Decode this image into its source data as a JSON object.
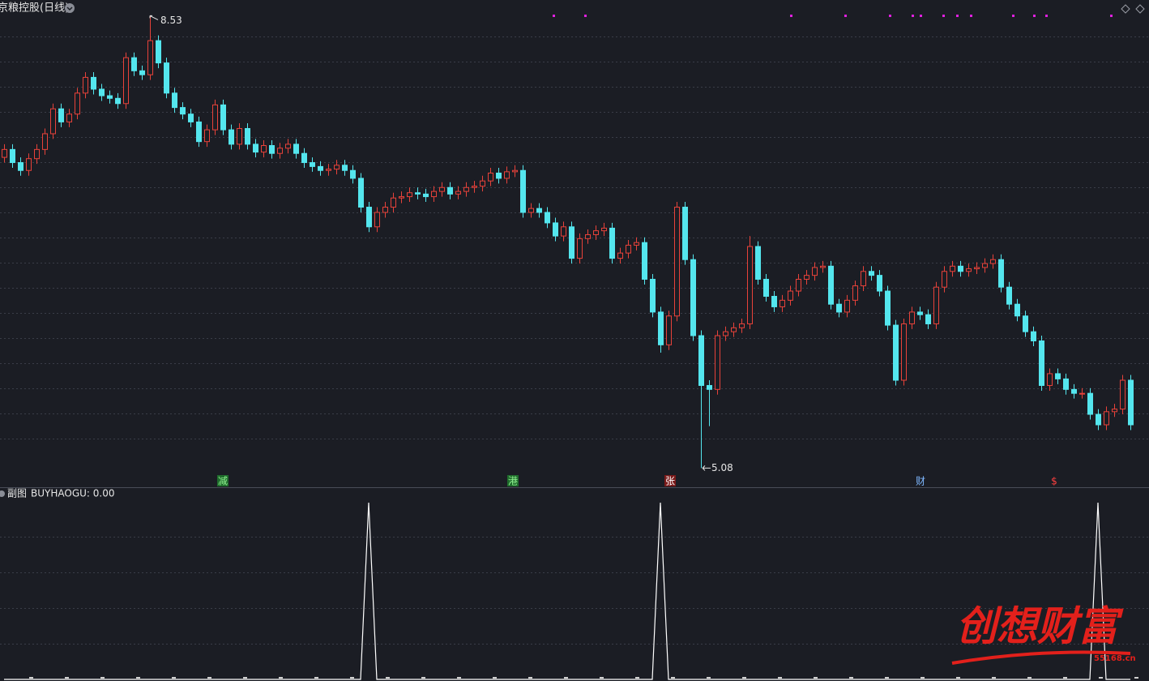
{
  "chart_data": [
    {
      "type": "candlestick",
      "title": "京粮控股(日线)",
      "up_color": "#e8423a",
      "down_color": "#54e6ee",
      "ylim": [
        4.94,
        8.65
      ],
      "open": [
        7.45,
        7.51,
        7.41,
        7.35,
        7.44,
        7.51,
        7.63,
        7.82,
        7.72,
        7.78,
        7.94,
        8.06,
        7.97,
        7.92,
        7.9,
        7.86,
        8.21,
        8.11,
        8.08,
        8.34,
        8.17,
        7.94,
        7.83,
        7.78,
        7.72,
        7.57,
        7.66,
        7.85,
        7.66,
        7.55,
        7.67,
        7.55,
        7.49,
        7.54,
        7.48,
        7.52,
        7.55,
        7.48,
        7.41,
        7.38,
        7.35,
        7.36,
        7.39,
        7.35,
        7.29,
        7.07,
        6.92,
        7.03,
        7.07,
        7.14,
        7.15,
        7.18,
        7.17,
        7.15,
        7.19,
        7.22,
        7.17,
        7.19,
        7.22,
        7.23,
        7.27,
        7.33,
        7.29,
        7.34,
        7.35,
        7.03,
        7.06,
        7.03,
        6.95,
        6.85,
        6.92,
        6.68,
        6.83,
        6.86,
        6.89,
        6.91,
        6.68,
        6.72,
        6.78,
        6.8,
        6.52,
        6.27,
        6.02,
        6.24,
        7.07,
        6.67,
        6.09,
        5.71,
        5.68,
        6.09,
        6.12,
        6.15,
        6.18,
        6.77,
        6.52,
        6.39,
        6.31,
        6.36,
        6.43,
        6.52,
        6.55,
        6.61,
        6.62,
        6.33,
        6.27,
        6.36,
        6.47,
        6.58,
        6.55,
        6.43,
        6.17,
        5.75,
        6.18,
        6.27,
        6.25,
        6.18,
        6.46,
        6.58,
        6.62,
        6.58,
        6.6,
        6.61,
        6.64,
        6.67,
        6.46,
        6.33,
        6.24,
        6.12,
        6.05,
        5.71,
        5.8,
        5.76,
        5.68,
        5.65,
        5.65,
        5.49,
        5.41,
        5.51,
        5.53,
        5.75
      ],
      "high": [
        7.55,
        7.55,
        7.45,
        7.48,
        7.55,
        7.67,
        7.86,
        7.86,
        7.82,
        7.98,
        8.1,
        8.1,
        8.01,
        7.96,
        7.94,
        8.25,
        8.25,
        8.15,
        8.53,
        8.38,
        8.21,
        7.98,
        7.87,
        7.82,
        7.76,
        7.7,
        7.89,
        7.89,
        7.7,
        7.71,
        7.71,
        7.59,
        7.58,
        7.58,
        7.56,
        7.59,
        7.59,
        7.52,
        7.45,
        7.42,
        7.4,
        7.43,
        7.43,
        7.39,
        7.33,
        7.11,
        7.07,
        7.11,
        7.18,
        7.19,
        7.22,
        7.22,
        7.21,
        7.23,
        7.26,
        7.26,
        7.23,
        7.26,
        7.27,
        7.31,
        7.37,
        7.37,
        7.38,
        7.39,
        7.39,
        7.1,
        7.1,
        7.07,
        6.99,
        6.96,
        6.96,
        6.87,
        6.9,
        6.93,
        6.95,
        6.95,
        6.76,
        6.82,
        6.84,
        6.84,
        6.56,
        6.31,
        6.28,
        7.11,
        7.11,
        6.71,
        6.13,
        5.75,
        6.13,
        6.16,
        6.19,
        6.22,
        6.85,
        6.81,
        6.56,
        6.43,
        6.4,
        6.47,
        6.56,
        6.59,
        6.65,
        6.66,
        6.66,
        6.37,
        6.4,
        6.51,
        6.62,
        6.62,
        6.59,
        6.47,
        6.21,
        6.22,
        6.31,
        6.31,
        6.29,
        6.5,
        6.62,
        6.66,
        6.66,
        6.64,
        6.65,
        6.68,
        6.71,
        6.71,
        6.5,
        6.37,
        6.28,
        6.16,
        6.09,
        5.84,
        5.84,
        5.8,
        5.72,
        5.69,
        5.69,
        5.53,
        5.55,
        5.57,
        5.79,
        5.79
      ],
      "low": [
        7.41,
        7.37,
        7.31,
        7.31,
        7.4,
        7.47,
        7.59,
        7.68,
        7.68,
        7.74,
        7.9,
        7.93,
        7.88,
        7.86,
        7.82,
        7.82,
        8.07,
        8.04,
        8.04,
        8.13,
        7.9,
        7.79,
        7.74,
        7.68,
        7.53,
        7.53,
        7.62,
        7.62,
        7.51,
        7.51,
        7.51,
        7.45,
        7.45,
        7.44,
        7.44,
        7.48,
        7.44,
        7.37,
        7.34,
        7.31,
        7.31,
        7.32,
        7.31,
        7.25,
        7.03,
        6.88,
        6.88,
        6.99,
        7.03,
        7.1,
        7.11,
        7.13,
        7.11,
        7.11,
        7.15,
        7.13,
        7.13,
        7.15,
        7.18,
        7.19,
        7.23,
        7.25,
        7.25,
        7.3,
        6.99,
        6.99,
        6.99,
        6.91,
        6.81,
        6.81,
        6.64,
        6.64,
        6.79,
        6.82,
        6.85,
        6.64,
        6.64,
        6.68,
        6.74,
        6.48,
        6.23,
        5.96,
        5.98,
        6.2,
        6.63,
        6.05,
        5.08,
        5.4,
        5.64,
        6.05,
        6.08,
        6.11,
        6.14,
        6.48,
        6.35,
        6.27,
        6.27,
        6.32,
        6.39,
        6.48,
        6.51,
        6.57,
        6.29,
        6.23,
        6.23,
        6.32,
        6.43,
        6.51,
        6.39,
        6.13,
        5.71,
        5.71,
        6.14,
        6.21,
        6.14,
        6.14,
        6.42,
        6.54,
        6.54,
        6.54,
        6.56,
        6.57,
        6.6,
        6.42,
        6.29,
        6.2,
        6.08,
        6.01,
        5.67,
        5.67,
        5.72,
        5.64,
        5.61,
        5.61,
        5.45,
        5.37,
        5.37,
        5.47,
        5.49,
        5.37
      ],
      "close": [
        7.51,
        7.41,
        7.35,
        7.44,
        7.51,
        7.63,
        7.82,
        7.72,
        7.78,
        7.94,
        8.06,
        7.97,
        7.92,
        7.9,
        7.86,
        8.21,
        8.11,
        8.08,
        8.34,
        8.17,
        7.94,
        7.83,
        7.78,
        7.72,
        7.57,
        7.66,
        7.85,
        7.66,
        7.55,
        7.67,
        7.55,
        7.49,
        7.54,
        7.48,
        7.52,
        7.55,
        7.48,
        7.41,
        7.38,
        7.35,
        7.36,
        7.39,
        7.35,
        7.29,
        7.07,
        6.92,
        7.03,
        7.07,
        7.14,
        7.15,
        7.18,
        7.17,
        7.15,
        7.19,
        7.22,
        7.17,
        7.19,
        7.22,
        7.23,
        7.27,
        7.33,
        7.29,
        7.34,
        7.35,
        7.03,
        7.06,
        7.03,
        6.95,
        6.85,
        6.92,
        6.68,
        6.83,
        6.86,
        6.89,
        6.91,
        6.68,
        6.72,
        6.78,
        6.8,
        6.52,
        6.27,
        6.02,
        6.24,
        7.07,
        6.67,
        6.09,
        5.71,
        5.68,
        6.09,
        6.12,
        6.15,
        6.18,
        6.77,
        6.52,
        6.39,
        6.31,
        6.36,
        6.43,
        6.52,
        6.55,
        6.61,
        6.62,
        6.33,
        6.27,
        6.36,
        6.47,
        6.58,
        6.55,
        6.43,
        6.17,
        5.75,
        6.18,
        6.27,
        6.25,
        6.18,
        6.46,
        6.58,
        6.62,
        6.58,
        6.6,
        6.61,
        6.64,
        6.67,
        6.46,
        6.33,
        6.24,
        6.12,
        6.05,
        5.71,
        5.8,
        5.76,
        5.68,
        5.65,
        5.65,
        5.49,
        5.41,
        5.51,
        5.53,
        5.75,
        5.41
      ],
      "annotations": [
        "减",
        "港",
        "张",
        "财",
        "$"
      ]
    },
    {
      "type": "line",
      "title": "副图",
      "subtitle": "BUYHAOGU: 0.00",
      "color": "#ffffff",
      "ylim": [
        0,
        1
      ],
      "values": [
        0,
        0,
        0,
        0,
        0,
        0,
        0,
        0,
        0,
        0,
        0,
        0,
        0,
        0,
        0,
        0,
        0,
        0,
        0,
        0,
        0,
        0,
        0,
        0,
        0,
        0,
        0,
        0,
        0,
        0,
        0,
        0,
        0,
        0,
        0,
        0,
        0,
        0,
        0,
        0,
        0,
        0,
        0,
        0,
        0,
        1,
        0,
        0,
        0,
        0,
        0,
        0,
        0,
        0,
        0,
        0,
        0,
        0,
        0,
        0,
        0,
        0,
        0,
        0,
        0,
        0,
        0,
        0,
        0,
        0,
        0,
        0,
        0,
        0,
        0,
        0,
        0,
        0,
        0,
        0,
        0,
        1,
        0,
        0,
        0,
        0,
        0,
        0,
        0,
        0,
        0,
        0,
        0,
        0,
        0,
        0,
        0,
        0,
        0,
        0,
        0,
        0,
        0,
        0,
        0,
        0,
        0,
        0,
        0,
        0,
        0,
        0,
        0,
        0,
        0,
        0,
        0,
        0,
        0,
        0,
        0,
        0,
        0,
        0,
        0,
        0,
        0,
        0,
        0,
        0,
        0,
        0,
        0,
        0,
        0,
        1,
        0,
        0,
        0,
        0
      ]
    }
  ],
  "watermark": {
    "title": "创想财富",
    "site": "55168.cn"
  }
}
